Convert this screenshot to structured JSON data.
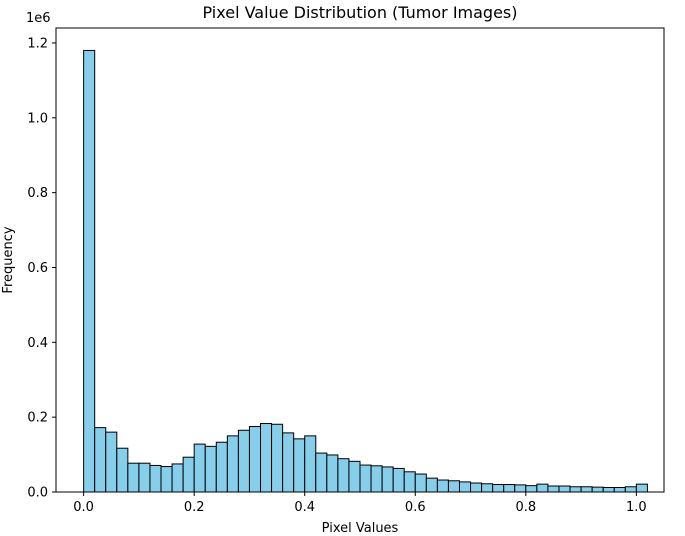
{
  "chart_data": {
    "type": "bar",
    "title": "Pixel Value Distribution (Tumor Images)",
    "xlabel": "Pixel Values",
    "ylabel": "Frequency",
    "y_offset_label": "1e6",
    "xlim": [
      -0.05,
      1.05
    ],
    "ylim": [
      0,
      1.24
    ],
    "x_ticks": [
      0.0,
      0.2,
      0.4,
      0.6,
      0.8,
      1.0
    ],
    "x_tick_labels": [
      "0.0",
      "0.2",
      "0.4",
      "0.6",
      "0.8",
      "1.0"
    ],
    "y_ticks": [
      0.0,
      0.2,
      0.4,
      0.6,
      0.8,
      1.0,
      1.2
    ],
    "y_tick_labels": [
      "0.0",
      "0.2",
      "0.4",
      "0.6",
      "0.8",
      "1.0",
      "1.2"
    ],
    "y_scale_note": "values in units of 1e6",
    "bin_start": 0.0,
    "bin_width": 0.02,
    "bar_color": "#87CEEB",
    "edge_color": "#000000",
    "grid": false,
    "values": [
      1.18,
      0.172,
      0.16,
      0.117,
      0.077,
      0.077,
      0.071,
      0.068,
      0.075,
      0.093,
      0.128,
      0.122,
      0.133,
      0.15,
      0.165,
      0.175,
      0.183,
      0.181,
      0.158,
      0.142,
      0.15,
      0.104,
      0.099,
      0.089,
      0.082,
      0.072,
      0.07,
      0.067,
      0.063,
      0.054,
      0.048,
      0.037,
      0.032,
      0.03,
      0.027,
      0.024,
      0.022,
      0.02,
      0.02,
      0.019,
      0.017,
      0.021,
      0.016,
      0.016,
      0.014,
      0.014,
      0.013,
      0.012,
      0.012,
      0.014,
      0.021
    ]
  }
}
